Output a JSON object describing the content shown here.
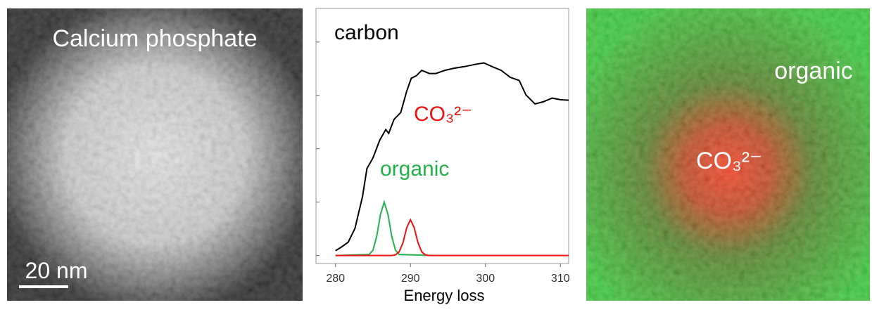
{
  "left_panel": {
    "label": "Calcium phosphate",
    "scale_bar": "20 nm"
  },
  "right_panel": {
    "labels": [
      "organic",
      "CO₃²⁻"
    ]
  },
  "chart_data": {
    "type": "line",
    "title": "carbon",
    "x_label": "Energy loss",
    "xlim": [
      277.4,
      311.1
    ],
    "xticks": [
      280,
      290,
      300,
      310
    ],
    "ylim": [
      -0.15,
      4.63
    ],
    "yticks": [
      0,
      1,
      2,
      3,
      4
    ],
    "show_ytick_labels": false,
    "series": [
      {
        "name": "carbon",
        "color": "#000000",
        "x": [
          280,
          280.8,
          281.7,
          282.6,
          283.6,
          284.2,
          285,
          285.9,
          286.7,
          287.1,
          287.8,
          288.7,
          289.5,
          290.1,
          290.8,
          291.5,
          292.5,
          293.4,
          294.6,
          295.8,
          297.2,
          298.6,
          299.8,
          300.9,
          302.1,
          303.3,
          304.5,
          305.4,
          306.6,
          307.7,
          308.9,
          310,
          311.1
        ],
        "values": [
          0.09,
          0.16,
          0.25,
          0.51,
          1.1,
          1.63,
          1.83,
          2.16,
          2.36,
          2.29,
          2.55,
          2.68,
          3.08,
          3.32,
          3.37,
          3.47,
          3.41,
          3.41,
          3.47,
          3.51,
          3.54,
          3.58,
          3.61,
          3.54,
          3.47,
          3.34,
          3.28,
          3.01,
          2.84,
          2.88,
          2.95,
          2.92,
          2.91
        ]
      },
      {
        "name": "organic",
        "color": "#22b14c",
        "x": [
          280,
          284.5,
          285,
          285.5,
          286,
          286.5,
          287,
          287.5,
          288,
          288.5,
          293
        ],
        "values": [
          0,
          0.02,
          0.1,
          0.36,
          0.77,
          1,
          0.77,
          0.36,
          0.1,
          0.02,
          0
        ]
      },
      {
        "name": "CO₃²⁻",
        "color": "#ee1111",
        "x": [
          280,
          287.5,
          288,
          288.5,
          289,
          289.5,
          290,
          290.5,
          291,
          291.5,
          292,
          292.5,
          311.1
        ],
        "values": [
          0,
          0,
          0.01,
          0.07,
          0.24,
          0.52,
          0.67,
          0.52,
          0.24,
          0.07,
          0.01,
          0,
          0
        ]
      }
    ]
  }
}
